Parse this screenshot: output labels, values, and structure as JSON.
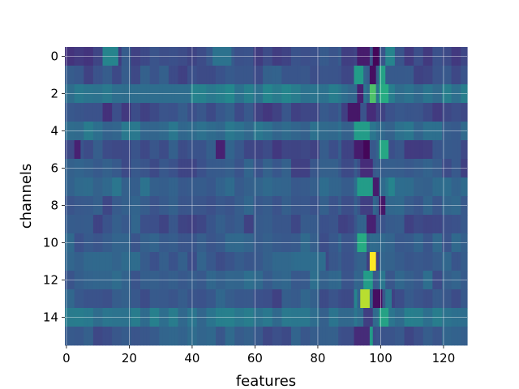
{
  "chart_data": {
    "type": "heatmap",
    "title": "",
    "xlabel": "features",
    "ylabel": "channels",
    "xlim": [
      0,
      127
    ],
    "ylim": [
      15,
      0
    ],
    "y_inverted": true,
    "xticks": [
      0,
      20,
      40,
      60,
      80,
      100,
      120
    ],
    "yticks": [
      0,
      2,
      4,
      6,
      8,
      10,
      12,
      14
    ],
    "grid": true,
    "colormap": "viridis",
    "background_level": 0.28,
    "n_rows": 16,
    "n_cols": 128,
    "rows": [
      {
        "channel": 0,
        "base": 0.24,
        "spots": [
          {
            "x": 12,
            "w": 5,
            "v": 0.45
          },
          {
            "x": 47,
            "w": 6,
            "v": 0.38
          },
          {
            "x": 93,
            "w": 4,
            "v": 0.1
          },
          {
            "x": 98,
            "w": 2,
            "v": 0.02
          },
          {
            "x": 102,
            "w": 3,
            "v": 0.45
          }
        ]
      },
      {
        "channel": 1,
        "base": 0.26,
        "spots": [
          {
            "x": 92,
            "w": 3,
            "v": 0.55
          },
          {
            "x": 97,
            "w": 2,
            "v": 0.05
          },
          {
            "x": 100,
            "w": 2,
            "v": 0.58
          }
        ]
      },
      {
        "channel": 2,
        "base": 0.4,
        "spots": [
          {
            "x": 20,
            "w": 20,
            "v": 0.36
          },
          {
            "x": 93,
            "w": 2,
            "v": 0.12
          },
          {
            "x": 97,
            "w": 2,
            "v": 0.72
          },
          {
            "x": 100,
            "w": 3,
            "v": 0.62
          }
        ]
      },
      {
        "channel": 3,
        "base": 0.24,
        "spots": [
          {
            "x": 90,
            "w": 4,
            "v": 0.08
          },
          {
            "x": 96,
            "w": 3,
            "v": 0.15
          }
        ]
      },
      {
        "channel": 4,
        "base": 0.35,
        "spots": [
          {
            "x": 92,
            "w": 5,
            "v": 0.55
          },
          {
            "x": 99,
            "w": 2,
            "v": 0.35
          }
        ]
      },
      {
        "channel": 5,
        "base": 0.25,
        "spots": [
          {
            "x": 3,
            "w": 2,
            "v": 0.12
          },
          {
            "x": 48,
            "w": 3,
            "v": 0.12
          },
          {
            "x": 92,
            "w": 3,
            "v": 0.1
          },
          {
            "x": 95,
            "w": 2,
            "v": 0.02
          },
          {
            "x": 100,
            "w": 3,
            "v": 0.6
          }
        ]
      },
      {
        "channel": 6,
        "base": 0.27,
        "spots": [
          {
            "x": 94,
            "w": 4,
            "v": 0.15
          }
        ]
      },
      {
        "channel": 7,
        "base": 0.33,
        "spots": [
          {
            "x": 93,
            "w": 5,
            "v": 0.55
          },
          {
            "x": 98,
            "w": 2,
            "v": 0.1
          },
          {
            "x": 103,
            "w": 2,
            "v": 0.45
          }
        ]
      },
      {
        "channel": 8,
        "base": 0.28,
        "spots": [
          {
            "x": 94,
            "w": 4,
            "v": 0.2
          },
          {
            "x": 100,
            "w": 2,
            "v": 0.08
          }
        ]
      },
      {
        "channel": 9,
        "base": 0.26,
        "spots": [
          {
            "x": 96,
            "w": 3,
            "v": 0.12
          }
        ]
      },
      {
        "channel": 10,
        "base": 0.3,
        "spots": [
          {
            "x": 93,
            "w": 3,
            "v": 0.62
          },
          {
            "x": 97,
            "w": 2,
            "v": 0.35
          }
        ]
      },
      {
        "channel": 11,
        "base": 0.29,
        "spots": [
          {
            "x": 73,
            "w": 10,
            "v": 0.36
          },
          {
            "x": 97,
            "w": 2,
            "v": 1.0
          },
          {
            "x": 96,
            "w": 1,
            "v": 0.2
          },
          {
            "x": 99,
            "w": 1,
            "v": 0.2
          }
        ]
      },
      {
        "channel": 12,
        "base": 0.3,
        "spots": [
          {
            "x": 95,
            "w": 3,
            "v": 0.55
          },
          {
            "x": 100,
            "w": 2,
            "v": 0.4
          }
        ]
      },
      {
        "channel": 13,
        "base": 0.27,
        "spots": [
          {
            "x": 91,
            "w": 2,
            "v": 0.45
          },
          {
            "x": 94,
            "w": 3,
            "v": 0.9
          },
          {
            "x": 98,
            "w": 3,
            "v": 0.05
          },
          {
            "x": 102,
            "w": 2,
            "v": 0.4
          }
        ]
      },
      {
        "channel": 14,
        "base": 0.38,
        "spots": [
          {
            "x": 95,
            "w": 3,
            "v": 0.2
          },
          {
            "x": 100,
            "w": 3,
            "v": 0.58
          }
        ]
      },
      {
        "channel": 15,
        "base": 0.28,
        "spots": [
          {
            "x": 92,
            "w": 6,
            "v": 0.15
          },
          {
            "x": 97,
            "w": 1,
            "v": 0.55
          }
        ]
      }
    ]
  }
}
